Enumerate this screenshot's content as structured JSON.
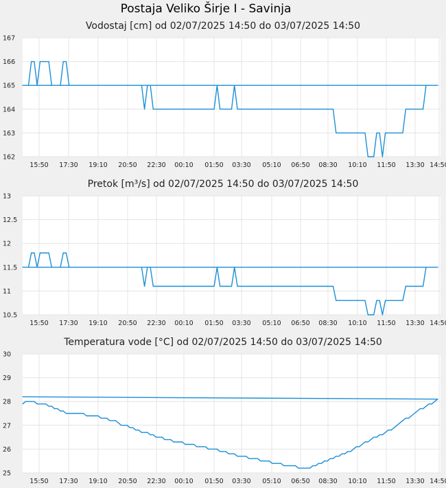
{
  "page_title": "Postaja Veliko Širje I - Savinja",
  "chart_data": [
    {
      "type": "line",
      "title": "Vodostaj [cm] od 02/07/2025 14:50 do 03/07/2025 14:50",
      "xlabel": "",
      "ylabel": "",
      "x_tick_labels": [
        "15:50",
        "17:30",
        "19:10",
        "20:50",
        "22:30",
        "00:10",
        "01:50",
        "03:30",
        "05:10",
        "06:50",
        "08:30",
        "10:10",
        "11:50",
        "13:30",
        "14:50"
      ],
      "y_ticks": [
        "162",
        "163",
        "164",
        "165",
        "166",
        "167"
      ],
      "ylim": [
        162,
        167
      ],
      "grid": true,
      "color": "#1a8fd6",
      "series": [
        {
          "x": [
            "14:50",
            "15:00",
            "15:10",
            "15:20",
            "15:30",
            "15:40",
            "15:50",
            "16:00",
            "16:10",
            "16:20",
            "16:30",
            "16:40",
            "16:50",
            "17:00",
            "17:10",
            "17:20",
            "17:30",
            "17:40",
            "17:50",
            "18:00",
            "18:10",
            "18:20",
            "18:30",
            "18:40",
            "18:50",
            "19:00",
            "19:10",
            "19:20",
            "19:30",
            "19:40",
            "19:50",
            "20:00",
            "20:10",
            "20:20",
            "20:30",
            "20:40",
            "20:50",
            "21:00",
            "21:10",
            "21:20",
            "21:30",
            "21:40",
            "21:50",
            "22:00",
            "22:10",
            "22:20",
            "22:30",
            "22:40",
            "22:50",
            "23:00",
            "23:10",
            "23:20",
            "23:30",
            "23:40",
            "23:50",
            "00:00",
            "00:10",
            "00:20",
            "00:30",
            "00:40",
            "00:50",
            "01:00",
            "01:10",
            "01:20",
            "01:30",
            "01:40",
            "01:50",
            "02:00",
            "02:10",
            "02:20",
            "02:30",
            "02:40",
            "02:50",
            "03:00",
            "03:10",
            "03:20",
            "03:30",
            "03:40",
            "03:50",
            "04:00",
            "04:10",
            "04:20",
            "04:30",
            "04:40",
            "04:50",
            "05:00",
            "05:10",
            "05:20",
            "05:30",
            "05:40",
            "05:50",
            "06:00",
            "06:10",
            "06:20",
            "06:30",
            "06:40",
            "06:50",
            "07:00",
            "07:10",
            "07:20",
            "07:30",
            "07:40",
            "07:50",
            "08:00",
            "08:10",
            "08:20",
            "08:30",
            "08:40",
            "08:50",
            "09:00",
            "09:10",
            "09:20",
            "09:30",
            "09:40",
            "09:50",
            "10:00",
            "10:10",
            "10:20",
            "10:30",
            "10:40",
            "10:50",
            "11:00",
            "11:10",
            "11:20",
            "11:30",
            "11:40",
            "11:50",
            "12:00",
            "12:10",
            "12:20",
            "12:30",
            "12:40",
            "12:50",
            "13:00",
            "13:10",
            "13:20",
            "13:30",
            "13:40",
            "13:50",
            "14:00",
            "14:10",
            "14:20",
            "14:30",
            "14:40",
            "14:50"
          ],
          "values": [
            165,
            165,
            165,
            166,
            166,
            165,
            166,
            166,
            166,
            166,
            165,
            165,
            165,
            165,
            166,
            166,
            165,
            165,
            165,
            165,
            165,
            165,
            165,
            165,
            165,
            165,
            165,
            165,
            165,
            165,
            165,
            165,
            165,
            165,
            165,
            165,
            165,
            165,
            165,
            165,
            165,
            165,
            164,
            165,
            165,
            164,
            164,
            164,
            164,
            164,
            164,
            164,
            164,
            164,
            164,
            164,
            164,
            164,
            164,
            164,
            164,
            164,
            164,
            164,
            164,
            164,
            164,
            165,
            164,
            164,
            164,
            164,
            164,
            165,
            164,
            164,
            164,
            164,
            164,
            164,
            164,
            164,
            164,
            164,
            164,
            164,
            164,
            164,
            164,
            164,
            164,
            164,
            164,
            164,
            164,
            164,
            164,
            164,
            164,
            164,
            164,
            164,
            164,
            164,
            164,
            164,
            164,
            164,
            163,
            163,
            163,
            163,
            163,
            163,
            163,
            163,
            163,
            163,
            163,
            162,
            162,
            162,
            163,
            163,
            162,
            163,
            163,
            163,
            163,
            163,
            163,
            163,
            164,
            164,
            164,
            164,
            164,
            164,
            164,
            165,
            165,
            165,
            165,
            165,
            165
          ]
        }
      ]
    },
    {
      "type": "line",
      "title": "Pretok [m³/s] od 02/07/2025 14:50 do 03/07/2025 14:50",
      "xlabel": "",
      "ylabel": "",
      "x_tick_labels": [
        "15:50",
        "17:30",
        "19:10",
        "20:50",
        "22:30",
        "00:10",
        "01:50",
        "03:30",
        "05:10",
        "06:50",
        "08:30",
        "10:10",
        "11:50",
        "13:30",
        "14:50"
      ],
      "y_ticks": [
        "10.5",
        "11",
        "11.5",
        "12",
        "12.5",
        "13"
      ],
      "ylim": [
        10.5,
        13
      ],
      "grid": true,
      "color": "#1a8fd6",
      "series": [
        {
          "x": [
            "14:50",
            "15:00",
            "15:10",
            "15:20",
            "15:30",
            "15:40",
            "15:50",
            "16:00",
            "16:10",
            "16:20",
            "16:30",
            "16:40",
            "16:50",
            "17:00",
            "17:10",
            "17:20",
            "17:30",
            "17:40",
            "17:50",
            "18:00",
            "18:10",
            "18:20",
            "18:30",
            "18:40",
            "18:50",
            "19:00",
            "19:10",
            "19:20",
            "19:30",
            "19:40",
            "19:50",
            "20:00",
            "20:10",
            "20:20",
            "20:30",
            "20:40",
            "20:50",
            "21:00",
            "21:10",
            "21:20",
            "21:30",
            "21:40",
            "21:50",
            "22:00",
            "22:10",
            "22:20",
            "22:30",
            "22:40",
            "22:50",
            "23:00",
            "23:10",
            "23:20",
            "23:30",
            "23:40",
            "23:50",
            "00:00",
            "00:10",
            "00:20",
            "00:30",
            "00:40",
            "00:50",
            "01:00",
            "01:10",
            "01:20",
            "01:30",
            "01:40",
            "01:50",
            "02:00",
            "02:10",
            "02:20",
            "02:30",
            "02:40",
            "02:50",
            "03:00",
            "03:10",
            "03:20",
            "03:30",
            "03:40",
            "03:50",
            "04:00",
            "04:10",
            "04:20",
            "04:30",
            "04:40",
            "04:50",
            "05:00",
            "05:10",
            "05:20",
            "05:30",
            "05:40",
            "05:50",
            "06:00",
            "06:10",
            "06:20",
            "06:30",
            "06:40",
            "06:50",
            "07:00",
            "07:10",
            "07:20",
            "07:30",
            "07:40",
            "07:50",
            "08:00",
            "08:10",
            "08:20",
            "08:30",
            "08:40",
            "08:50",
            "09:00",
            "09:10",
            "09:20",
            "09:30",
            "09:40",
            "09:50",
            "10:00",
            "10:10",
            "10:20",
            "10:30",
            "10:40",
            "10:50",
            "11:00",
            "11:10",
            "11:20",
            "11:30",
            "11:40",
            "11:50",
            "12:00",
            "12:10",
            "12:20",
            "12:30",
            "12:40",
            "12:50",
            "13:00",
            "13:10",
            "13:20",
            "13:30",
            "13:40",
            "13:50",
            "14:00",
            "14:10",
            "14:20",
            "14:30",
            "14:40",
            "14:50"
          ],
          "values": [
            11.5,
            11.5,
            11.5,
            11.8,
            11.8,
            11.5,
            11.8,
            11.8,
            11.8,
            11.8,
            11.5,
            11.5,
            11.5,
            11.5,
            11.8,
            11.8,
            11.5,
            11.5,
            11.5,
            11.5,
            11.5,
            11.5,
            11.5,
            11.5,
            11.5,
            11.5,
            11.5,
            11.5,
            11.5,
            11.5,
            11.5,
            11.5,
            11.5,
            11.5,
            11.5,
            11.5,
            11.5,
            11.5,
            11.5,
            11.5,
            11.5,
            11.5,
            11.1,
            11.5,
            11.5,
            11.1,
            11.1,
            11.1,
            11.1,
            11.1,
            11.1,
            11.1,
            11.1,
            11.1,
            11.1,
            11.1,
            11.1,
            11.1,
            11.1,
            11.1,
            11.1,
            11.1,
            11.1,
            11.1,
            11.1,
            11.1,
            11.1,
            11.5,
            11.1,
            11.1,
            11.1,
            11.1,
            11.1,
            11.5,
            11.1,
            11.1,
            11.1,
            11.1,
            11.1,
            11.1,
            11.1,
            11.1,
            11.1,
            11.1,
            11.1,
            11.1,
            11.1,
            11.1,
            11.1,
            11.1,
            11.1,
            11.1,
            11.1,
            11.1,
            11.1,
            11.1,
            11.1,
            11.1,
            11.1,
            11.1,
            11.1,
            11.1,
            11.1,
            11.1,
            11.1,
            11.1,
            11.1,
            11.1,
            10.8,
            10.8,
            10.8,
            10.8,
            10.8,
            10.8,
            10.8,
            10.8,
            10.8,
            10.8,
            10.8,
            10.5,
            10.5,
            10.5,
            10.8,
            10.8,
            10.5,
            10.8,
            10.8,
            10.8,
            10.8,
            10.8,
            10.8,
            10.8,
            11.1,
            11.1,
            11.1,
            11.1,
            11.1,
            11.1,
            11.1,
            11.5,
            11.5,
            11.5,
            11.5,
            11.5,
            11.5
          ]
        }
      ]
    },
    {
      "type": "line",
      "title": "Temperatura vode [°C] od 02/07/2025 14:50 do 03/07/2025 14:50",
      "xlabel": "",
      "ylabel": "",
      "x_tick_labels": [
        "15:50",
        "17:30",
        "19:10",
        "20:50",
        "22:30",
        "00:10",
        "01:50",
        "03:30",
        "05:10",
        "06:50",
        "08:30",
        "10:10",
        "11:50",
        "13:30",
        "14:50"
      ],
      "y_ticks": [
        "25",
        "26",
        "27",
        "28",
        "29",
        "30"
      ],
      "ylim": [
        25,
        30
      ],
      "grid": true,
      "color": "#1a8fd6",
      "series": [
        {
          "x": [
            "14:50",
            "15:00",
            "15:10",
            "15:20",
            "15:30",
            "15:40",
            "15:50",
            "16:00",
            "16:10",
            "16:20",
            "16:30",
            "16:40",
            "16:50",
            "17:00",
            "17:10",
            "17:20",
            "17:30",
            "17:40",
            "17:50",
            "18:00",
            "18:10",
            "18:20",
            "18:30",
            "18:40",
            "18:50",
            "19:00",
            "19:10",
            "19:20",
            "19:30",
            "19:40",
            "19:50",
            "20:00",
            "20:10",
            "20:20",
            "20:30",
            "20:40",
            "20:50",
            "21:00",
            "21:10",
            "21:20",
            "21:30",
            "21:40",
            "21:50",
            "22:00",
            "22:10",
            "22:20",
            "22:30",
            "22:40",
            "22:50",
            "23:00",
            "23:10",
            "23:20",
            "23:30",
            "23:40",
            "23:50",
            "00:00",
            "00:10",
            "00:20",
            "00:30",
            "00:40",
            "00:50",
            "01:00",
            "01:10",
            "01:20",
            "01:30",
            "01:40",
            "01:50",
            "02:00",
            "02:10",
            "02:20",
            "02:30",
            "02:40",
            "02:50",
            "03:00",
            "03:10",
            "03:20",
            "03:30",
            "03:40",
            "03:50",
            "04:00",
            "04:10",
            "04:20",
            "04:30",
            "04:40",
            "04:50",
            "05:00",
            "05:10",
            "05:20",
            "05:30",
            "05:40",
            "05:50",
            "06:00",
            "06:10",
            "06:20",
            "06:30",
            "06:40",
            "06:50",
            "07:00",
            "07:10",
            "07:20",
            "07:30",
            "07:40",
            "07:50",
            "08:00",
            "08:10",
            "08:20",
            "08:30",
            "08:40",
            "08:50",
            "09:00",
            "09:10",
            "09:20",
            "09:30",
            "09:40",
            "09:50",
            "10:00",
            "10:10",
            "10:20",
            "10:30",
            "10:40",
            "10:50",
            "11:00",
            "11:10",
            "11:20",
            "11:30",
            "11:40",
            "11:50",
            "12:00",
            "12:10",
            "12:20",
            "12:30",
            "12:40",
            "12:50",
            "13:00",
            "13:10",
            "13:20",
            "13:30",
            "13:40",
            "13:50",
            "14:00",
            "14:10",
            "14:20",
            "14:30",
            "14:40",
            "14:50"
          ],
          "values": [
            27.9,
            28.0,
            28.0,
            28.0,
            28.0,
            27.9,
            27.9,
            27.9,
            27.9,
            27.8,
            27.8,
            27.7,
            27.7,
            27.6,
            27.6,
            27.5,
            27.5,
            27.5,
            27.5,
            27.5,
            27.5,
            27.5,
            27.4,
            27.4,
            27.4,
            27.4,
            27.4,
            27.3,
            27.3,
            27.3,
            27.2,
            27.2,
            27.2,
            27.1,
            27.0,
            27.0,
            27.0,
            26.9,
            26.9,
            26.8,
            26.8,
            26.7,
            26.7,
            26.7,
            26.6,
            26.6,
            26.5,
            26.5,
            26.5,
            26.4,
            26.4,
            26.4,
            26.3,
            26.3,
            26.3,
            26.3,
            26.2,
            26.2,
            26.2,
            26.2,
            26.1,
            26.1,
            26.1,
            26.1,
            26.0,
            26.0,
            26.0,
            26.0,
            25.9,
            25.9,
            25.9,
            25.8,
            25.8,
            25.8,
            25.7,
            25.7,
            25.7,
            25.7,
            25.6,
            25.6,
            25.6,
            25.6,
            25.5,
            25.5,
            25.5,
            25.5,
            25.4,
            25.4,
            25.4,
            25.4,
            25.3,
            25.3,
            25.3,
            25.3,
            25.3,
            25.2,
            25.2,
            25.2,
            25.2,
            25.2,
            25.3,
            25.3,
            25.4,
            25.4,
            25.5,
            25.5,
            25.6,
            25.6,
            25.7,
            25.7,
            25.8,
            25.8,
            25.9,
            25.9,
            26.0,
            26.1,
            26.1,
            26.2,
            26.3,
            26.3,
            26.4,
            26.5,
            26.5,
            26.6,
            26.6,
            26.7,
            26.8,
            26.8,
            26.9,
            27.0,
            27.1,
            27.2,
            27.3,
            27.3,
            27.4,
            27.5,
            27.6,
            27.7,
            27.7,
            27.8,
            27.9,
            27.9,
            28.0,
            28.1,
            28.2
          ]
        }
      ]
    }
  ]
}
